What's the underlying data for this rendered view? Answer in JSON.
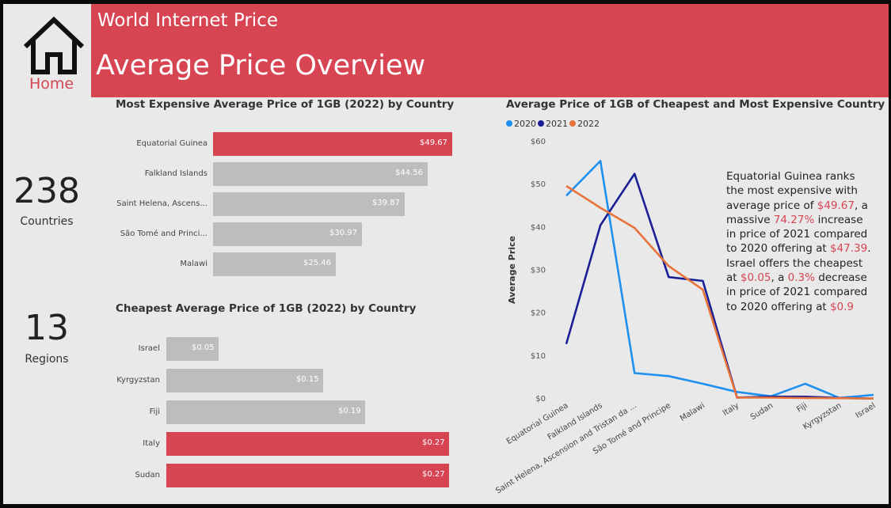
{
  "header": {
    "subtitle": "World Internet Price",
    "title": "Average Price Overview"
  },
  "nav": {
    "home_label": "Home",
    "home_icon": "home-icon"
  },
  "kpis": {
    "countries": {
      "value": "238",
      "label": "Countries"
    },
    "regions": {
      "value": "13",
      "label": "Regions"
    }
  },
  "colors": {
    "accent": "#d74553",
    "bar_grey": "#bdbdbd",
    "s2020": "#1e90f0",
    "s2021": "#1a1f96",
    "s2022": "#e8743b"
  },
  "chart_data": [
    {
      "type": "bar",
      "orientation": "horizontal",
      "title": "Most Expensive Average Price of 1GB (2022) by Country",
      "categories": [
        "Equatorial Guinea",
        "Falkland Islands",
        "Saint Helena, Ascens...",
        "São Tomé and Princi...",
        "Malawi"
      ],
      "values": [
        49.67,
        44.56,
        39.87,
        30.97,
        25.46
      ],
      "labels": [
        "$49.67",
        "$44.56",
        "$39.87",
        "$30.97",
        "$25.46"
      ],
      "highlight": [
        true,
        false,
        false,
        false,
        false
      ],
      "xlim": [
        0,
        49.67
      ]
    },
    {
      "type": "bar",
      "orientation": "horizontal",
      "title": "Cheapest Average Price of 1GB (2022) by Country",
      "categories": [
        "Israel",
        "Kyrgyzstan",
        "Fiji",
        "Italy",
        "Sudan"
      ],
      "values": [
        0.05,
        0.15,
        0.19,
        0.27,
        0.27
      ],
      "labels": [
        "$0.05",
        "$0.15",
        "$0.19",
        "$0.27",
        "$0.27"
      ],
      "highlight": [
        false,
        false,
        false,
        true,
        true
      ],
      "xlim": [
        0,
        0.27
      ]
    },
    {
      "type": "line",
      "title": "Average Price of 1GB of Cheapest and Most Expensive Country by Year",
      "ylabel": "Average Price",
      "xlabel": "",
      "ylim": [
        0,
        60
      ],
      "yticks": [
        "$0",
        "$10",
        "$20",
        "$30",
        "$40",
        "$50",
        "$60"
      ],
      "categories": [
        "Equatorial Guinea",
        "Falkland Islands",
        "Saint Helena, Ascension and Tristan da ...",
        "São Tomé and Principe",
        "Malawi",
        "Italy",
        "Sudan",
        "Fiji",
        "Kyrgyzstan",
        "Israel"
      ],
      "series": [
        {
          "name": "2020",
          "values": [
            47.39,
            55.5,
            6.0,
            5.3,
            3.5,
            1.6,
            0.6,
            3.5,
            0.2,
            0.9
          ]
        },
        {
          "name": "2021",
          "values": [
            12.8,
            40.5,
            52.5,
            28.4,
            27.5,
            0.3,
            0.5,
            0.5,
            0.2,
            0.05
          ]
        },
        {
          "name": "2022",
          "values": [
            49.67,
            44.56,
            39.87,
            30.97,
            25.46,
            0.27,
            0.27,
            0.19,
            0.15,
            0.05
          ]
        }
      ],
      "legend_position": "top-left"
    }
  ],
  "annotation": {
    "l1": "Equatorial Guinea ranks the most expensive with average price of ",
    "v1": "$49.67",
    "l2": ", a massive ",
    "v2": "74.27%",
    "l3": " increase in price of 2021 compared to 2020 offering at ",
    "v3": "$47.39",
    "l4": ".",
    "l5": "Israel offers the cheapest at ",
    "v4": "$0.05",
    "l6": ", a ",
    "v5": "0.3%",
    "l7": " decrease in price of 2021 compared to 2020 offering at ",
    "v6": "$0.9"
  }
}
